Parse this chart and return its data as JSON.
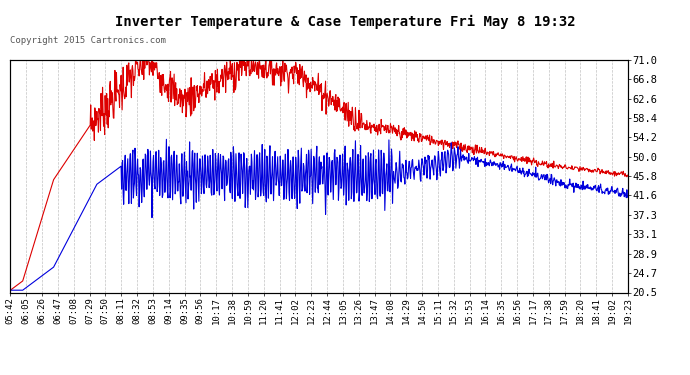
{
  "title": "Inverter Temperature & Case Temperature Fri May 8 19:32",
  "copyright": "Copyright 2015 Cartronics.com",
  "ylabel_right_ticks": [
    20.5,
    24.7,
    28.9,
    33.1,
    37.3,
    41.6,
    45.8,
    50.0,
    54.2,
    58.4,
    62.6,
    66.8,
    71.0
  ],
  "ylim": [
    20.5,
    71.0
  ],
  "bg_color": "#ffffff",
  "plot_bg_color": "#ffffff",
  "grid_color": "#999999",
  "case_color": "#0000dd",
  "inverter_color": "#dd0000",
  "legend_case_bg": "#0000cc",
  "legend_inverter_bg": "#cc0000",
  "x_tick_labels": [
    "05:42",
    "06:05",
    "06:26",
    "06:47",
    "07:08",
    "07:29",
    "07:50",
    "08:11",
    "08:32",
    "08:53",
    "09:14",
    "09:35",
    "09:56",
    "10:17",
    "10:38",
    "10:59",
    "11:20",
    "11:41",
    "12:02",
    "12:23",
    "12:44",
    "13:05",
    "13:26",
    "13:47",
    "14:08",
    "14:29",
    "14:50",
    "15:11",
    "15:32",
    "15:53",
    "16:14",
    "16:35",
    "16:56",
    "17:17",
    "17:38",
    "17:59",
    "18:20",
    "18:41",
    "19:02",
    "19:23"
  ],
  "n_points": 1200
}
